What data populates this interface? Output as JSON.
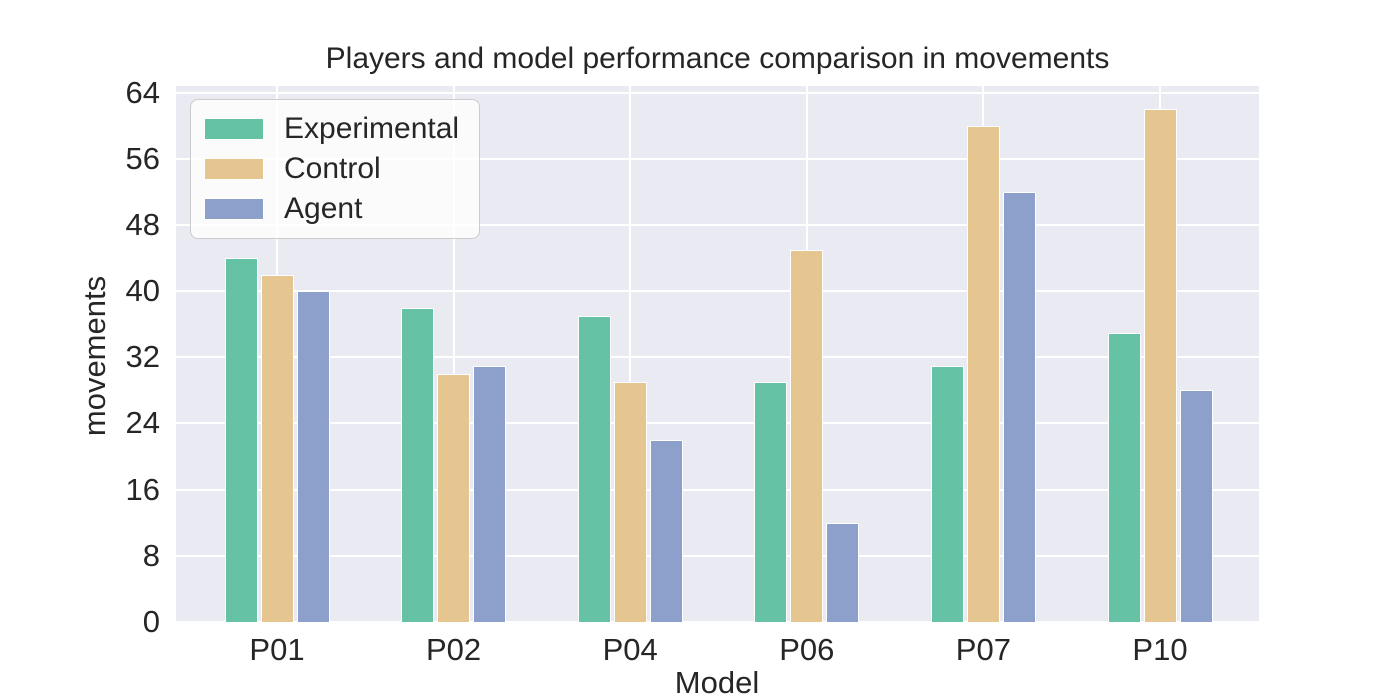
{
  "figure": {
    "title": "Players and model performance comparison in movements",
    "xlabel": "Model",
    "ylabel": "movements"
  },
  "chart_data": {
    "type": "bar",
    "title": "Players and model performance comparison in movements",
    "xlabel": "Model",
    "ylabel": "movements",
    "categories": [
      "P01",
      "P02",
      "P04",
      "P06",
      "P07",
      "P10"
    ],
    "series": [
      {
        "name": "Experimental",
        "color": "#66c2a5",
        "values": [
          44,
          38,
          37,
          29,
          31,
          35
        ]
      },
      {
        "name": "Control",
        "color": "#e6c690",
        "values": [
          42,
          30,
          29,
          45,
          60,
          62
        ]
      },
      {
        "name": "Agent",
        "color": "#8da0cb",
        "values": [
          40,
          31,
          22,
          12,
          52,
          28
        ]
      }
    ],
    "yticks": [
      0,
      8,
      16,
      24,
      32,
      40,
      48,
      56,
      64
    ],
    "ylim": [
      0,
      64.8
    ],
    "grid": true,
    "legend_position": "upper left",
    "plot_bg_color": "#eaeaf2",
    "grid_color": "#ffffff",
    "text_color": "#262626",
    "figure_bg_color": "#ffffff"
  }
}
